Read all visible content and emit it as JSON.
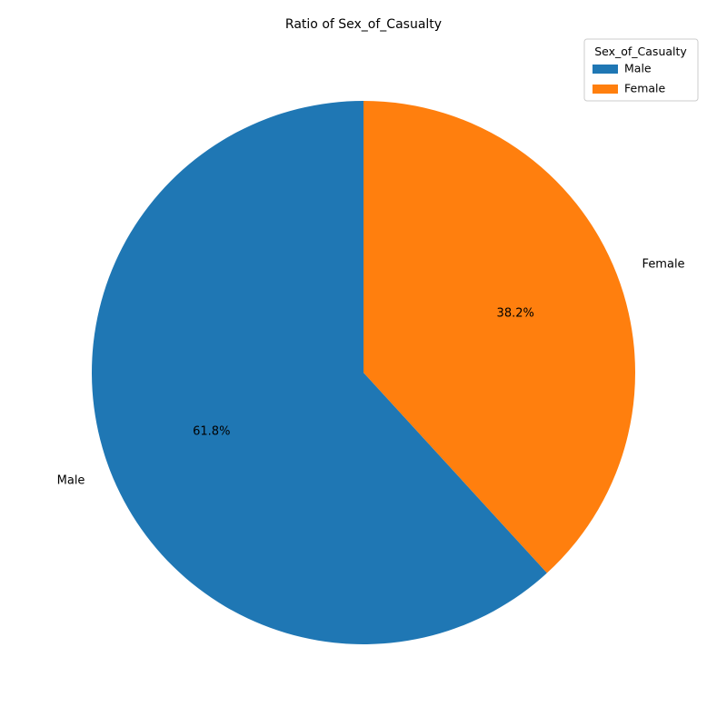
{
  "chart_data": {
    "type": "pie",
    "title": "Ratio of Sex_of_Casualty",
    "categories": [
      "Male",
      "Female"
    ],
    "values": [
      61.8,
      38.2
    ],
    "percent_labels": [
      "61.8%",
      "38.2%"
    ],
    "colors": [
      "#1f77b4",
      "#ff7f0e"
    ],
    "start_angle_deg": 90,
    "direction": "counterclockwise",
    "legend": {
      "title": "Sex_of_Casualty",
      "placement": "top-right",
      "entries": [
        "Male",
        "Female"
      ]
    }
  }
}
